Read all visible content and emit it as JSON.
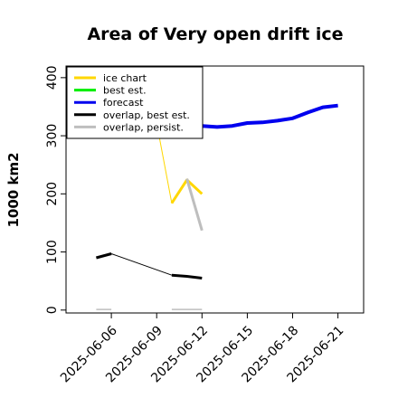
{
  "chart_data": {
    "type": "line",
    "title": "Area of Very open drift ice",
    "ylabel": "1000 km2",
    "xlabel": "",
    "ylim": [
      -5,
      420
    ],
    "yticks": [
      0,
      100,
      200,
      300,
      400
    ],
    "x_ticks": [
      {
        "label": "2025-06-06",
        "day": 6,
        "color": "#000000"
      },
      {
        "label": "2025-06-09",
        "day": 9,
        "color": "#000000"
      },
      {
        "label": "2025-06-12",
        "day": 12,
        "color": "#228b22"
      },
      {
        "label": "2025-06-15",
        "day": 15,
        "color": "#000000"
      },
      {
        "label": "2025-06-18",
        "day": 18,
        "color": "#000000"
      },
      {
        "label": "2025-06-21",
        "day": 21,
        "color": "#000000"
      }
    ],
    "xlim_days": [
      3.0,
      22.7
    ],
    "legend": {
      "position": "top-left",
      "entries": [
        {
          "label": "ice chart",
          "color": "#ffd700"
        },
        {
          "label": "best est.",
          "color": "#00ee00"
        },
        {
          "label": "forecast",
          "color": "#0000ee"
        },
        {
          "label": "overlap, best est.",
          "color": "#000000"
        },
        {
          "label": "overlap, persist.",
          "color": "#bebebe"
        }
      ]
    },
    "series": [
      {
        "name": "ice chart",
        "color": "#ffd700",
        "width": 1,
        "points": [
          [
            9,
            322
          ],
          [
            10,
            184
          ],
          [
            11,
            224
          ],
          [
            12,
            200
          ]
        ]
      },
      {
        "name": "ice chart",
        "color": "#ffd700",
        "width": 3,
        "points": [
          [
            10,
            184
          ],
          [
            11,
            224
          ],
          [
            12,
            200
          ]
        ]
      },
      {
        "name": "forecast",
        "color": "#0000ee",
        "width": 4,
        "points": [
          [
            12,
            317
          ],
          [
            13,
            315
          ],
          [
            14,
            317
          ],
          [
            15,
            322
          ],
          [
            16,
            323
          ],
          [
            17,
            326
          ],
          [
            18,
            330
          ],
          [
            19,
            340
          ],
          [
            20,
            349
          ],
          [
            21,
            352
          ]
        ]
      },
      {
        "name": "overlap, best est.",
        "color": "#000000",
        "width": 1,
        "points": [
          [
            6,
            97
          ],
          [
            10,
            60
          ]
        ]
      },
      {
        "name": "overlap, best est.",
        "color": "#000000",
        "width": 3,
        "points": [
          [
            5,
            90
          ],
          [
            6,
            97
          ]
        ]
      },
      {
        "name": "overlap, best est.",
        "color": "#000000",
        "width": 3,
        "points": [
          [
            10,
            60
          ],
          [
            11,
            58
          ],
          [
            12,
            55
          ]
        ]
      },
      {
        "name": "overlap, persist.",
        "color": "#bebebe",
        "width": 3,
        "points": [
          [
            11,
            226
          ],
          [
            12,
            137
          ]
        ]
      },
      {
        "name": "overlap, persist.",
        "color": "#bebebe",
        "width": 1.5,
        "points": [
          [
            5,
            1
          ],
          [
            6,
            1
          ]
        ]
      },
      {
        "name": "overlap, persist.",
        "color": "#bebebe",
        "width": 1.5,
        "points": [
          [
            10,
            1
          ],
          [
            12,
            1
          ]
        ]
      }
    ]
  }
}
